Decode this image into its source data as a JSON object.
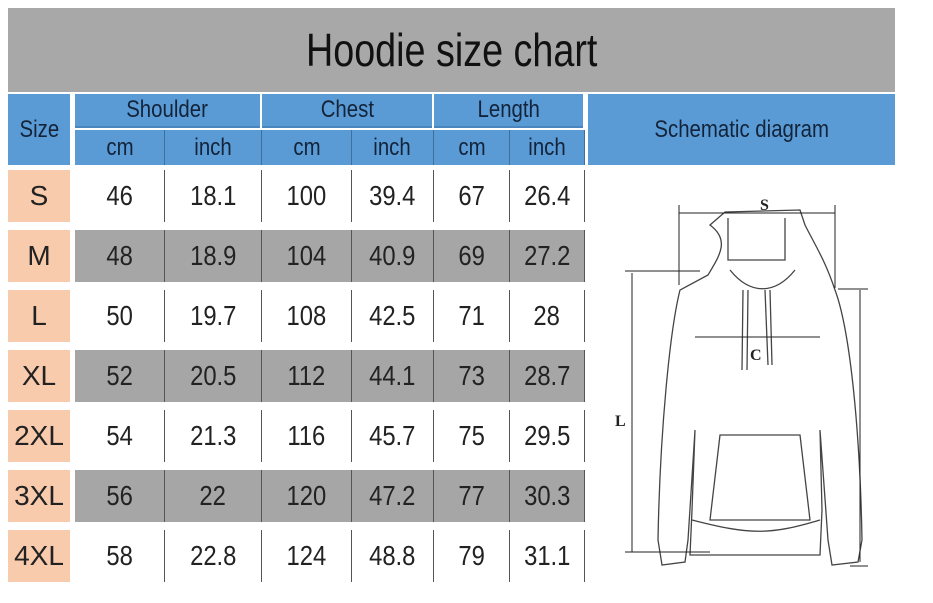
{
  "title": "Hoodie size chart",
  "header": {
    "size": "Size",
    "groups": [
      "Shoulder",
      "Chest",
      "Length"
    ],
    "units": [
      "cm",
      "inch",
      "cm",
      "inch",
      "cm",
      "inch"
    ],
    "diagram": "Schematic diagram"
  },
  "rows": [
    {
      "size": "S",
      "values": [
        "46",
        "18.1",
        "100",
        "39.4",
        "67",
        "26.4"
      ]
    },
    {
      "size": "M",
      "values": [
        "48",
        "18.9",
        "104",
        "40.9",
        "69",
        "27.2"
      ]
    },
    {
      "size": "L",
      "values": [
        "50",
        "19.7",
        "108",
        "42.5",
        "71",
        "28"
      ]
    },
    {
      "size": "XL",
      "values": [
        "52",
        "20.5",
        "112",
        "44.1",
        "73",
        "28.7"
      ]
    },
    {
      "size": "2XL",
      "values": [
        "54",
        "21.3",
        "116",
        "45.7",
        "75",
        "29.5"
      ]
    },
    {
      "size": "3XL",
      "values": [
        "56",
        "22",
        "120",
        "47.2",
        "77",
        "30.3"
      ]
    },
    {
      "size": "4XL",
      "values": [
        "58",
        "22.8",
        "124",
        "48.8",
        "79",
        "31.1"
      ]
    }
  ],
  "diagram": {
    "labels": {
      "shoulder": "S",
      "chest": "C",
      "length": "L"
    }
  },
  "colors": {
    "title_bg": "#a8a8a8",
    "header_bg": "#5b9bd5",
    "size_bg": "#f8cbad",
    "alt_row": "#a6a6a6"
  }
}
